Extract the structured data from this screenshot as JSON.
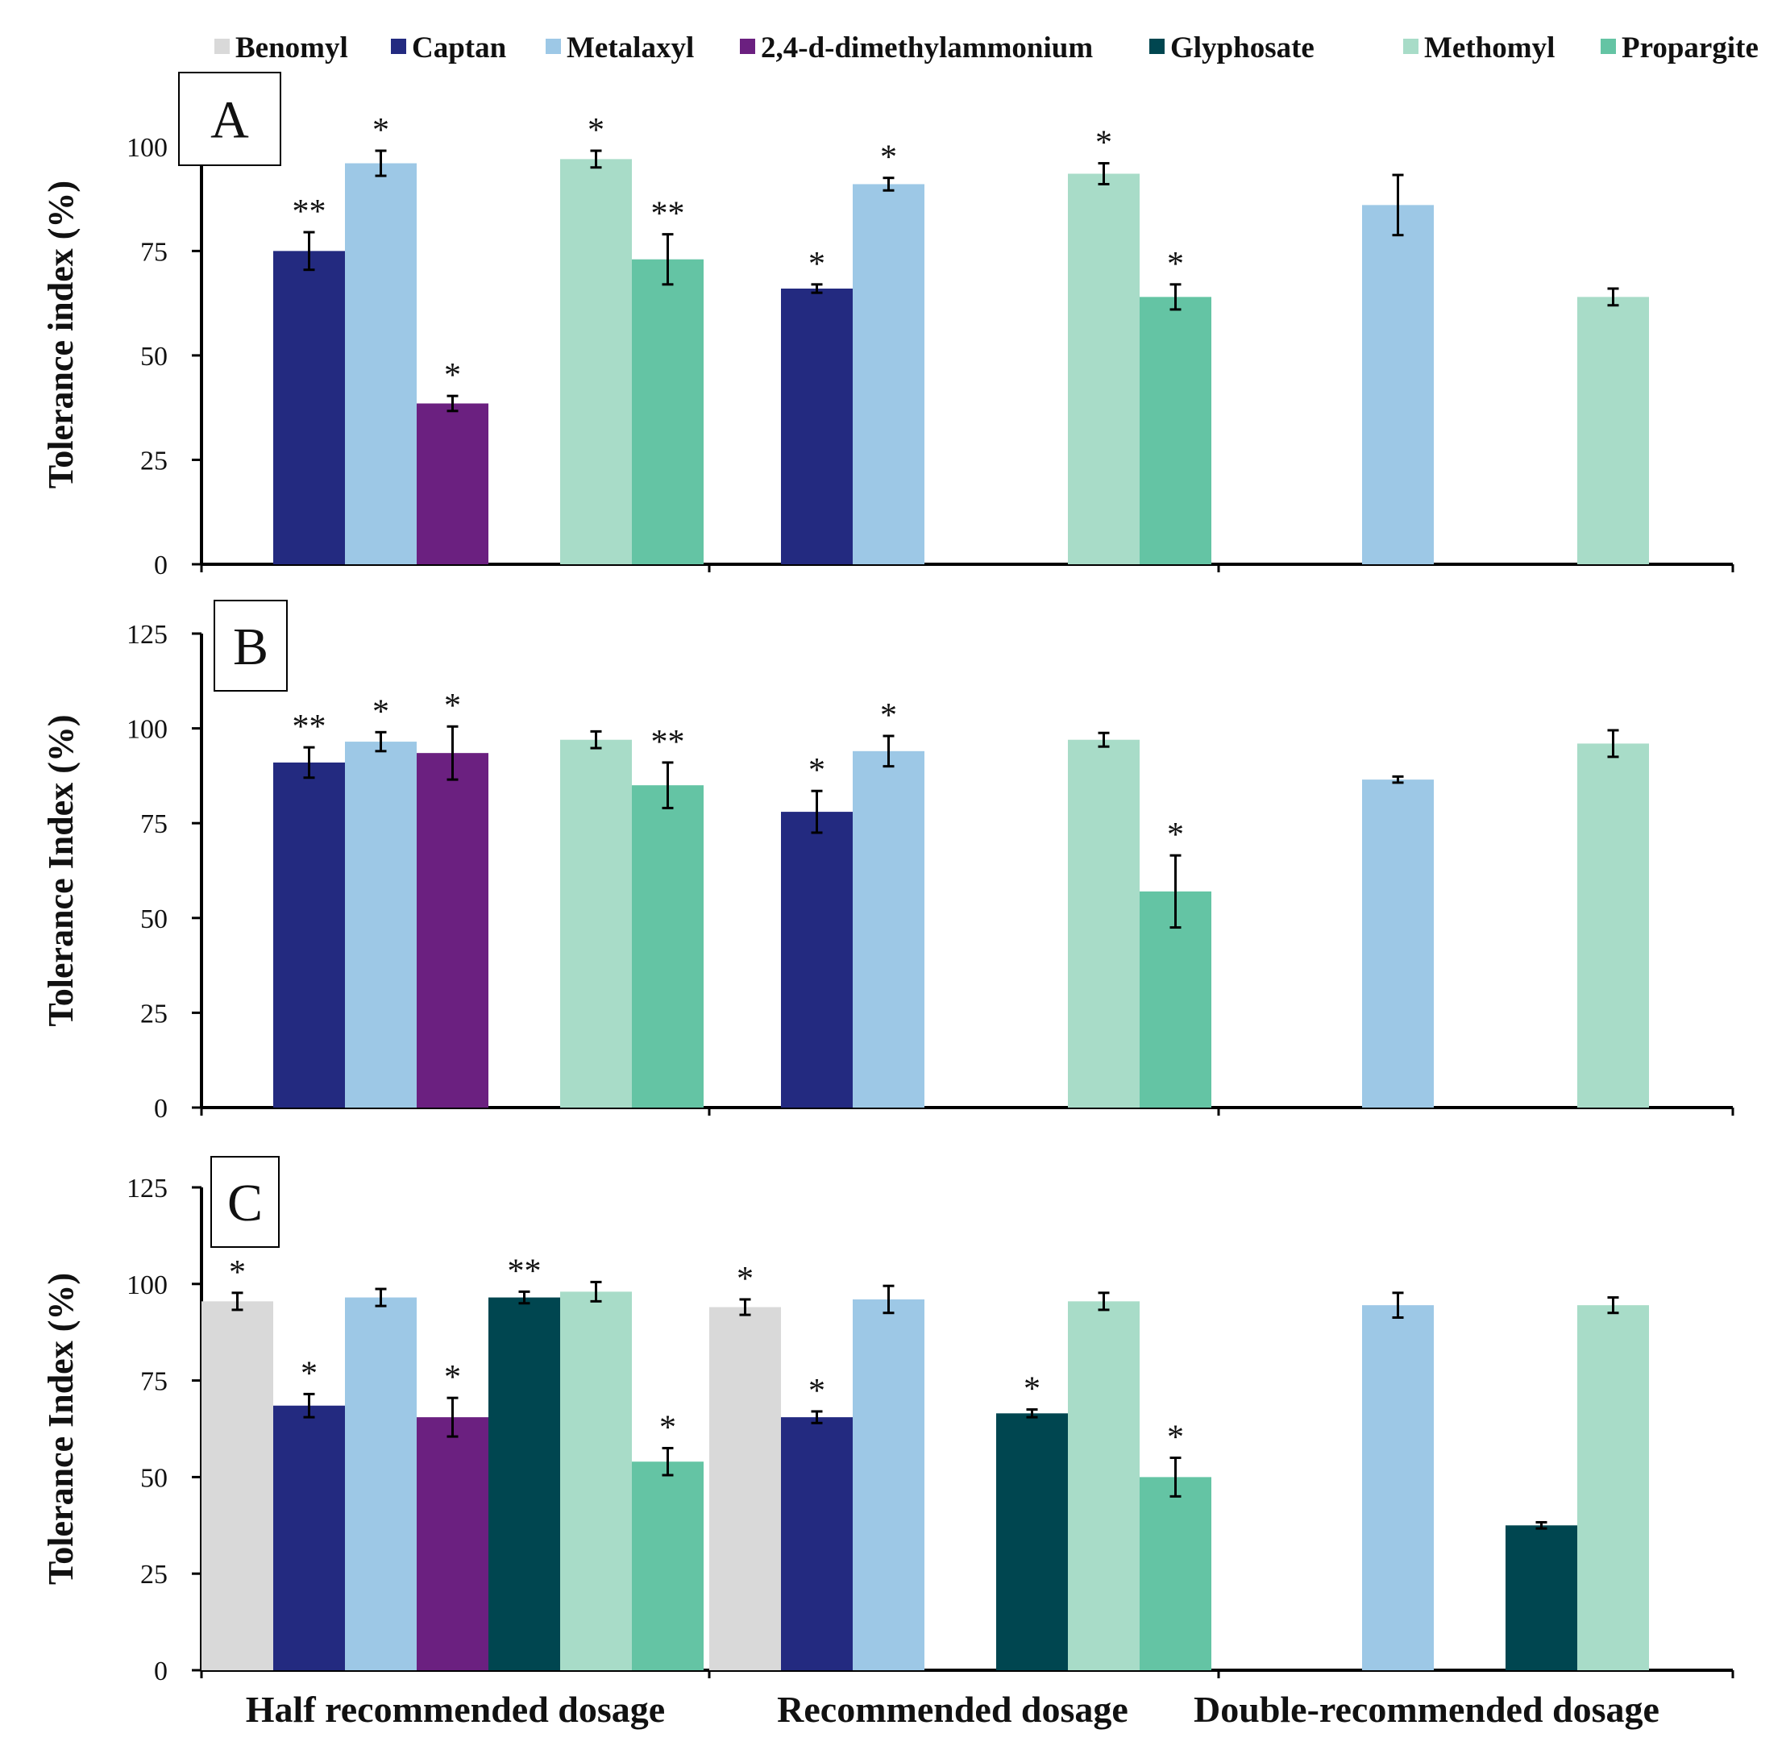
{
  "chart_data": {
    "type": "bar",
    "categories": [
      "Half recommended dosage",
      "Recommended dosage",
      "Double-recommended dosage"
    ],
    "legend": [
      {
        "name": "Benomyl",
        "color": "#d9d9d9"
      },
      {
        "name": "Captan",
        "color": "#232a80"
      },
      {
        "name": "Metalaxyl",
        "color": "#9dc8e6"
      },
      {
        "name": "2,4-d-dimethylammonium",
        "color": "#6b2080"
      },
      {
        "name": "Glyphosate",
        "color": "#004650"
      },
      {
        "name": "Methomyl",
        "color": "#a8dcc8"
      },
      {
        "name": "Propargite",
        "color": "#64c4a4"
      }
    ],
    "panels": [
      {
        "label": "A",
        "ylabel": "Tolerance index (%)",
        "ylim": [
          0,
          110
        ],
        "yticks": [
          0,
          25,
          50,
          75,
          100
        ],
        "series": [
          {
            "name": "Benomyl",
            "values": [
              null,
              null,
              null
            ],
            "errors": [
              null,
              null,
              null
            ],
            "sig": [
              "",
              "",
              ""
            ]
          },
          {
            "name": "Captan",
            "values": [
              75,
              66,
              null
            ],
            "errors": [
              4.5,
              1,
              null
            ],
            "sig": [
              "**",
              "*",
              ""
            ]
          },
          {
            "name": "Metalaxyl",
            "values": [
              96,
              91,
              86
            ],
            "errors": [
              3,
              1.5,
              7.2
            ],
            "sig": [
              "*",
              "*",
              ""
            ]
          },
          {
            "name": "2,4-d-dimethylammonium",
            "values": [
              38.5,
              null,
              null
            ],
            "errors": [
              1.8,
              null,
              null
            ],
            "sig": [
              "*",
              "",
              ""
            ]
          },
          {
            "name": "Glyphosate",
            "values": [
              null,
              null,
              null
            ],
            "errors": [
              null,
              null,
              null
            ],
            "sig": [
              "",
              "",
              ""
            ]
          },
          {
            "name": "Methomyl",
            "values": [
              97,
              93.5,
              64
            ],
            "errors": [
              2,
              2.5,
              2
            ],
            "sig": [
              "*",
              "*",
              ""
            ]
          },
          {
            "name": "Propargite",
            "values": [
              73,
              64,
              null
            ],
            "errors": [
              6,
              3,
              null
            ],
            "sig": [
              "**",
              "*",
              ""
            ]
          }
        ]
      },
      {
        "label": "B",
        "ylabel": "Tolerance Index (%)",
        "ylim": [
          0,
          125
        ],
        "yticks": [
          0,
          25,
          50,
          75,
          100,
          125
        ],
        "series": [
          {
            "name": "Benomyl",
            "values": [
              null,
              null,
              null
            ],
            "errors": [
              null,
              null,
              null
            ],
            "sig": [
              "",
              "",
              ""
            ]
          },
          {
            "name": "Captan",
            "values": [
              91,
              78,
              null
            ],
            "errors": [
              4,
              5.5,
              null
            ],
            "sig": [
              "**",
              "*",
              ""
            ]
          },
          {
            "name": "Metalaxyl",
            "values": [
              96.5,
              94,
              86.5
            ],
            "errors": [
              2.5,
              4,
              0.8
            ],
            "sig": [
              "*",
              "*",
              ""
            ]
          },
          {
            "name": "2,4-d-dimethylammonium",
            "values": [
              93.5,
              null,
              null
            ],
            "errors": [
              7,
              null,
              null
            ],
            "sig": [
              "*",
              "",
              ""
            ]
          },
          {
            "name": "Glyphosate",
            "values": [
              null,
              null,
              null
            ],
            "errors": [
              null,
              null,
              null
            ],
            "sig": [
              "",
              "",
              ""
            ]
          },
          {
            "name": "Methomyl",
            "values": [
              97,
              97,
              96
            ],
            "errors": [
              2.2,
              1.8,
              3.5
            ],
            "sig": [
              "",
              "",
              ""
            ]
          },
          {
            "name": "Propargite",
            "values": [
              85,
              57,
              null
            ],
            "errors": [
              6,
              9.5,
              null
            ],
            "sig": [
              "**",
              "*",
              ""
            ]
          }
        ]
      },
      {
        "label": "C",
        "ylabel": "Tolerance Index (%)",
        "ylim": [
          0,
          125
        ],
        "yticks": [
          0,
          25,
          50,
          75,
          100,
          125
        ],
        "series": [
          {
            "name": "Benomyl",
            "values": [
              95.5,
              94,
              null
            ],
            "errors": [
              2.2,
              2,
              null
            ],
            "sig": [
              "*",
              "*",
              ""
            ]
          },
          {
            "name": "Captan",
            "values": [
              68.5,
              65.5,
              null
            ],
            "errors": [
              3,
              1.5,
              null
            ],
            "sig": [
              "*",
              "*",
              ""
            ]
          },
          {
            "name": "Metalaxyl",
            "values": [
              96.5,
              96,
              94.5
            ],
            "errors": [
              2.2,
              3.5,
              3.2
            ],
            "sig": [
              "",
              "",
              ""
            ]
          },
          {
            "name": "2,4-d-dimethylammonium",
            "values": [
              65.5,
              null,
              null
            ],
            "errors": [
              5,
              null,
              null
            ],
            "sig": [
              "*",
              "",
              ""
            ]
          },
          {
            "name": "Glyphosate",
            "values": [
              96.5,
              66.5,
              37.5
            ],
            "errors": [
              1.5,
              1,
              0.8
            ],
            "sig": [
              "**",
              "*",
              ""
            ]
          },
          {
            "name": "Methomyl",
            "values": [
              98,
              95.5,
              94.5
            ],
            "errors": [
              2.5,
              2.2,
              2
            ],
            "sig": [
              "",
              "",
              ""
            ]
          },
          {
            "name": "Propargite",
            "values": [
              54,
              50,
              null
            ],
            "errors": [
              3.5,
              5,
              null
            ],
            "sig": [
              "*",
              "*",
              ""
            ]
          }
        ]
      }
    ]
  }
}
